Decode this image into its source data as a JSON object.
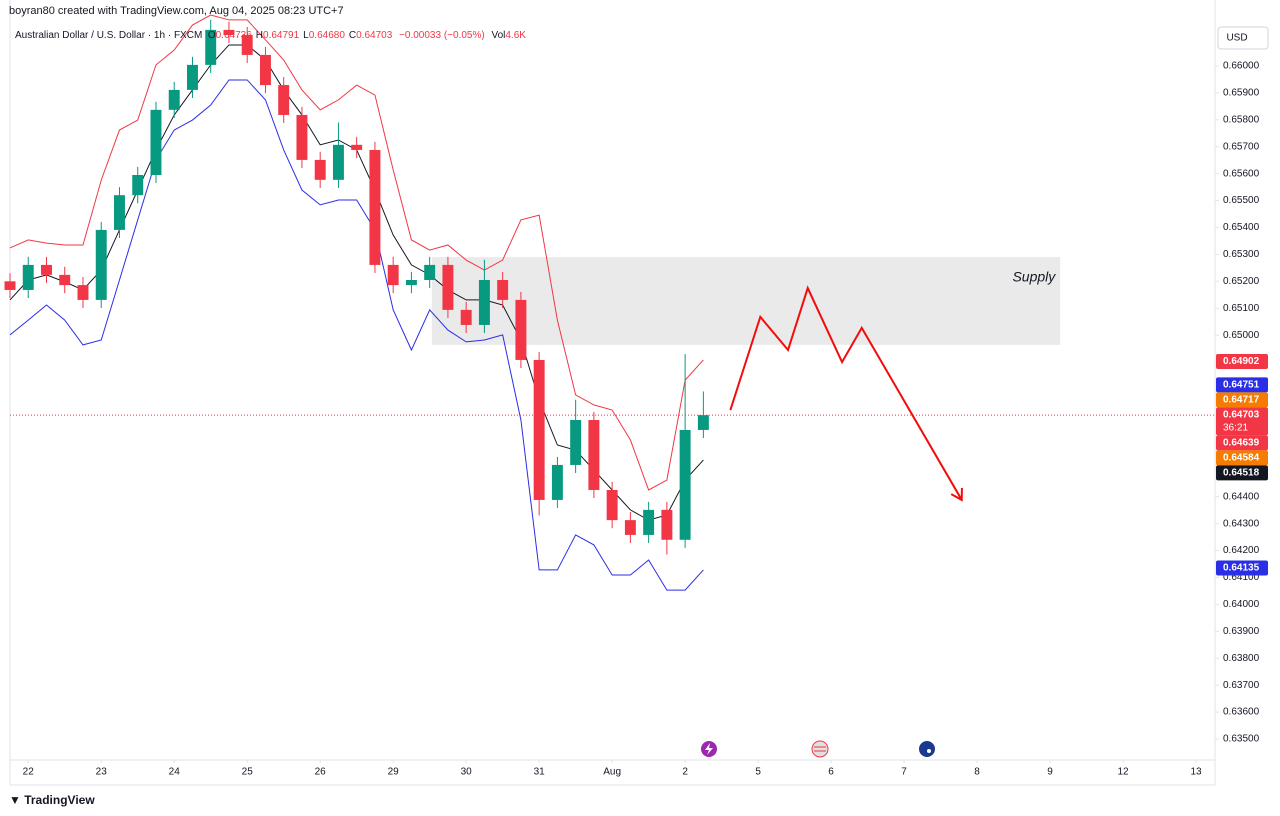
{
  "header": "boyran80 created with TradingView.com, Aug 04, 2025 08:23 UTC+7",
  "legend": {
    "symbol": "Australian Dollar / U.S. Dollar · 1h · FXCM",
    "ohlc": [
      {
        "key": "O",
        "value": "0.64736"
      },
      {
        "key": "H",
        "value": "0.64791"
      },
      {
        "key": "L",
        "value": "0.64680"
      },
      {
        "key": "C",
        "value": "0.64703"
      }
    ],
    "change": "−0.00033 (−0.05%)",
    "volume_key": "Vol",
    "volume": "4.6K"
  },
  "currency": "USD",
  "brand": "TradingView",
  "chart_data": {
    "type": "candlestick",
    "x": [
      -0.25,
      0,
      0.25,
      0.5,
      0.75,
      1,
      1.25,
      1.5,
      1.75,
      2,
      2.25,
      2.5,
      2.75,
      3,
      3.25,
      3.5,
      3.75,
      4,
      4.25,
      4.5,
      4.75,
      5,
      5.25,
      5.5,
      5.75,
      6,
      6.25,
      6.5,
      6.75,
      7,
      7.25,
      7.5,
      7.75,
      8,
      8.25,
      8.5,
      8.75,
      9,
      9.25
    ],
    "open": [
      0.652,
      0.65168,
      0.65261,
      0.65224,
      0.65186,
      0.65131,
      0.65391,
      0.6552,
      0.65595,
      0.65837,
      0.65911,
      0.66004,
      0.66134,
      0.66115,
      0.66041,
      0.65929,
      0.65818,
      0.65651,
      0.65577,
      0.65707,
      0.65688,
      0.65261,
      0.65186,
      0.65205,
      0.65261,
      0.65094,
      0.65038,
      0.65205,
      0.65131,
      0.64908,
      0.64388,
      0.64518,
      0.64685,
      0.64425,
      0.64313,
      0.64258,
      0.64351,
      0.6424,
      0.64648
    ],
    "high": [
      0.6523,
      0.65291,
      0.65291,
      0.65254,
      0.65216,
      0.65421,
      0.6555,
      0.65625,
      0.65867,
      0.65941,
      0.66034,
      0.66171,
      0.66164,
      0.66145,
      0.66071,
      0.65959,
      0.65848,
      0.65681,
      0.6579,
      0.65737,
      0.65718,
      0.65291,
      0.65235,
      0.65291,
      0.65291,
      0.65124,
      0.6528,
      0.65235,
      0.65161,
      0.64938,
      0.64548,
      0.6476,
      0.64715,
      0.64455,
      0.64343,
      0.64381,
      0.64381,
      0.6493,
      0.64791
    ],
    "low": [
      0.65138,
      0.65138,
      0.65194,
      0.65156,
      0.65101,
      0.65101,
      0.65361,
      0.6549,
      0.65565,
      0.65807,
      0.65881,
      0.65974,
      0.66085,
      0.66011,
      0.65899,
      0.65788,
      0.65621,
      0.65547,
      0.65547,
      0.65658,
      0.65231,
      0.65156,
      0.65156,
      0.65175,
      0.65064,
      0.65008,
      0.65008,
      0.65101,
      0.64878,
      0.6433,
      0.64358,
      0.64488,
      0.64395,
      0.64283,
      0.64228,
      0.64228,
      0.64185,
      0.6421,
      0.64618
    ],
    "close": [
      0.65168,
      0.65261,
      0.65224,
      0.65186,
      0.65131,
      0.65391,
      0.6552,
      0.65595,
      0.65837,
      0.65911,
      0.66004,
      0.66134,
      0.66115,
      0.66041,
      0.65929,
      0.65818,
      0.65651,
      0.65577,
      0.65707,
      0.65688,
      0.65261,
      0.65186,
      0.65205,
      0.65261,
      0.65094,
      0.65038,
      0.65205,
      0.65131,
      0.64908,
      0.64388,
      0.64518,
      0.64685,
      0.64425,
      0.64313,
      0.64258,
      0.64351,
      0.6424,
      0.64648,
      0.64703
    ],
    "up_color": "#089981",
    "down_color": "#f23645",
    "overlays": [
      {
        "color": "#f23645",
        "values": [
          0.65324,
          0.65354,
          0.65342,
          0.65335,
          0.65335,
          0.65576,
          0.65762,
          0.65799,
          0.66004,
          0.66059,
          0.66152,
          0.66189,
          0.66171,
          0.66171,
          0.66097,
          0.66022,
          0.65911,
          0.65837,
          0.65874,
          0.65929,
          0.65892,
          0.65614,
          0.65354,
          0.65316,
          0.65335,
          0.65279,
          0.65242,
          0.65279,
          0.65428,
          0.65446,
          0.65056,
          0.64778,
          0.64741,
          0.64722,
          0.64611,
          0.64425,
          0.64462,
          0.64833,
          0.64908
        ]
      },
      {
        "color": "#2a2ee6",
        "values": [
          0.65001,
          0.65056,
          0.65112,
          0.65056,
          0.64964,
          0.64982,
          0.65205,
          0.65428,
          0.65651,
          0.65762,
          0.65799,
          0.65855,
          0.65948,
          0.65948,
          0.65874,
          0.65688,
          0.65539,
          0.65484,
          0.65502,
          0.65502,
          0.65391,
          0.65094,
          0.64945,
          0.65094,
          0.65019,
          0.64975,
          0.64982,
          0.65001,
          0.64685,
          0.64128,
          0.64128,
          0.64258,
          0.64221,
          0.64109,
          0.64109,
          0.64165,
          0.64053,
          0.64053,
          0.64128
        ]
      },
      {
        "color": "#131722",
        "values": [
          0.65131,
          0.65205,
          0.65224,
          0.65198,
          0.65168,
          0.65242,
          0.65391,
          0.65539,
          0.65688,
          0.65818,
          0.65911,
          0.66004,
          0.66078,
          0.66078,
          0.66022,
          0.65911,
          0.65818,
          0.65707,
          0.65725,
          0.65688,
          0.65539,
          0.65372,
          0.65261,
          0.65224,
          0.65168,
          0.65131,
          0.65131,
          0.65112,
          0.64982,
          0.64759,
          0.64592,
          0.64573,
          0.64499,
          0.64425,
          0.64351,
          0.64313,
          0.64332,
          0.64462,
          0.64536
        ]
      }
    ],
    "xlim": [
      -0.25,
      16.26
    ],
    "ylim": [
      0.63422,
      0.66245
    ],
    "xticks": [
      {
        "value": 0,
        "label": "22"
      },
      {
        "value": 1,
        "label": "23"
      },
      {
        "value": 2,
        "label": "24"
      },
      {
        "value": 3,
        "label": "25"
      },
      {
        "value": 4,
        "label": "26"
      },
      {
        "value": 5,
        "label": "29"
      },
      {
        "value": 6,
        "label": "30"
      },
      {
        "value": 7,
        "label": "31"
      },
      {
        "value": 8,
        "label": "Aug"
      },
      {
        "value": 9,
        "label": "2"
      },
      {
        "value": 10,
        "label": "5"
      },
      {
        "value": 11,
        "label": "6"
      },
      {
        "value": 12,
        "label": "7"
      },
      {
        "value": 13,
        "label": "8"
      },
      {
        "value": 14,
        "label": "9"
      },
      {
        "value": 15,
        "label": "12"
      },
      {
        "value": 16,
        "label": "13"
      }
    ],
    "yticks": [
      {
        "value": 0.635,
        "label": "0.63500"
      },
      {
        "value": 0.636,
        "label": "0.63600"
      },
      {
        "value": 0.637,
        "label": "0.63700"
      },
      {
        "value": 0.638,
        "label": "0.63800"
      },
      {
        "value": 0.639,
        "label": "0.63900"
      },
      {
        "value": 0.64,
        "label": "0.64000"
      },
      {
        "value": 0.641,
        "label": "0.64100"
      },
      {
        "value": 0.642,
        "label": "0.64200"
      },
      {
        "value": 0.643,
        "label": "0.64300"
      },
      {
        "value": 0.644,
        "label": "0.64400"
      },
      {
        "value": 0.645,
        "label": "0.64500"
      },
      {
        "value": 0.646,
        "label": "0.64600"
      },
      {
        "value": 0.647,
        "label": "0.64700"
      },
      {
        "value": 0.648,
        "label": "0.64800"
      },
      {
        "value": 0.649,
        "label": "0.64900"
      },
      {
        "value": 0.65,
        "label": "0.65000"
      },
      {
        "value": 0.651,
        "label": "0.65100"
      },
      {
        "value": 0.652,
        "label": "0.65200"
      },
      {
        "value": 0.653,
        "label": "0.65300"
      },
      {
        "value": 0.654,
        "label": "0.65400"
      },
      {
        "value": 0.655,
        "label": "0.65500"
      },
      {
        "value": 0.656,
        "label": "0.65600"
      },
      {
        "value": 0.657,
        "label": "0.65700"
      },
      {
        "value": 0.658,
        "label": "0.65800"
      },
      {
        "value": 0.659,
        "label": "0.65900"
      },
      {
        "value": 0.66,
        "label": "0.66000"
      }
    ],
    "grid": false,
    "price_tags": [
      {
        "value": 0.64902,
        "color": "#f23645"
      },
      {
        "value": 0.64751,
        "color": "#2a2ee6"
      },
      {
        "value": 0.64717,
        "color": "#f57c00"
      },
      {
        "value": 0.64703,
        "color": "#f23645",
        "countdown": "36:21"
      },
      {
        "value": 0.64639,
        "color": "#f23645"
      },
      {
        "value": 0.64584,
        "color": "#f57c00"
      },
      {
        "value": 0.64518,
        "color": "#131722"
      },
      {
        "value": 0.64135,
        "color": "#2a2ee6"
      }
    ],
    "supply_zone": {
      "label": "Supply",
      "x": [
        5.53,
        14.14
      ],
      "y": [
        0.64964,
        0.6529
      ],
      "color": "#e6e6e6"
    },
    "projection": {
      "color": "#f20c0c",
      "x": [
        9.62,
        10.03,
        10.41,
        10.68,
        11.15,
        11.42,
        12.79
      ],
      "y": [
        0.64722,
        0.65068,
        0.64945,
        0.65175,
        0.649,
        0.65027,
        0.64388
      ]
    }
  }
}
